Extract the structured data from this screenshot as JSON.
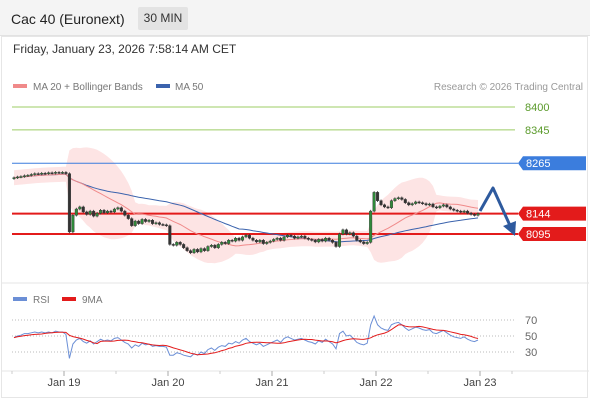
{
  "header": {
    "title": "Cac 40 (Euronext)",
    "timeframe": "30 MIN",
    "datetime": "Friday, January 23, 2026 7:58:14 AM CET"
  },
  "legend": {
    "ma20": "MA 20 + Bollinger Bands",
    "ma50": "MA 50",
    "rsi": "RSI",
    "ma9": "9MA"
  },
  "copyright": "Research © 2026 Trading Central",
  "colors": {
    "ma20": "#f08a8a",
    "ma50": "#3b63ad",
    "bands": "#fde4e4",
    "candle": "#2f8a3a",
    "level_green": "#9ccc65",
    "level_blue": "#3b7ddd",
    "level_red": "#e31b1b",
    "rsi": "#6b8fd6",
    "rsi_ma": "#e31b1b",
    "arrow": "#2e5a9e"
  },
  "chart_data": [
    {
      "type": "candlestick",
      "x_ticks": [
        "Jan 19",
        "Jan 20",
        "Jan 21",
        "Jan 22",
        "Jan 23"
      ],
      "levels": [
        {
          "value": 8400,
          "label": "8400",
          "style": "green-line"
        },
        {
          "value": 8345,
          "label": "8345",
          "style": "green-line"
        },
        {
          "value": 8265,
          "label": "8265",
          "style": "blue-tag"
        },
        {
          "value": 8144,
          "label": "8144",
          "style": "red-tag"
        },
        {
          "value": 8095,
          "label": "8095",
          "style": "red-tag"
        }
      ],
      "close": [
        8230,
        8232,
        8233,
        8235,
        8236,
        8238,
        8240,
        8239,
        8241,
        8240,
        8242,
        8241,
        8243,
        8242,
        8243,
        8240,
        8100,
        8140,
        8155,
        8160,
        8148,
        8142,
        8150,
        8138,
        8145,
        8152,
        8146,
        8150,
        8148,
        8155,
        8158,
        8150,
        8140,
        8132,
        8115,
        8126,
        8120,
        8130,
        8125,
        8128,
        8120,
        8122,
        8118,
        8117,
        8115,
        8070,
        8068,
        8075,
        8070,
        8062,
        8055,
        8050,
        8058,
        8052,
        8060,
        8055,
        8065,
        8068,
        8062,
        8070,
        8075,
        8072,
        8080,
        8078,
        8085,
        8080,
        8088,
        8092,
        8085,
        8080,
        8076,
        8080,
        8072,
        8075,
        8078,
        8082,
        8085,
        8080,
        8088,
        8092,
        8090,
        8085,
        8088,
        8090,
        8085,
        8082,
        8080,
        8076,
        8082,
        8078,
        8085,
        8080,
        8075,
        8065,
        8095,
        8105,
        8095,
        8098,
        8090,
        8080,
        8076,
        8072,
        8075,
        8150,
        8195,
        8175,
        8165,
        8160,
        8158,
        8175,
        8180,
        8182,
        8178,
        8170,
        8165,
        8168,
        8172,
        8170,
        8168,
        8165,
        8167,
        8160,
        8158,
        8162,
        8165,
        8160,
        8155,
        8152,
        8150,
        8148,
        8150,
        8145,
        8142,
        8140,
        8144
      ]
    },
    {
      "type": "line",
      "name": "RSI",
      "y_ticks": [
        70,
        50,
        30
      ],
      "values": [
        48,
        50,
        51,
        53,
        53,
        54,
        55,
        54,
        55,
        54,
        55,
        54,
        56,
        55,
        55,
        52,
        22,
        40,
        45,
        47,
        43,
        41,
        44,
        40,
        43,
        46,
        44,
        45,
        44,
        47,
        48,
        45,
        42,
        40,
        35,
        39,
        37,
        41,
        39,
        40,
        37,
        38,
        37,
        37,
        36,
        26,
        26,
        29,
        28,
        26,
        25,
        24,
        28,
        26,
        30,
        28,
        33,
        35,
        32,
        36,
        38,
        37,
        41,
        40,
        43,
        41,
        45,
        47,
        43,
        41,
        39,
        41,
        37,
        39,
        41,
        43,
        45,
        42,
        47,
        49,
        47,
        45,
        46,
        47,
        45,
        43,
        42,
        40,
        44,
        42,
        46,
        43,
        40,
        34,
        53,
        56,
        50,
        51,
        47,
        42,
        40,
        39,
        41,
        64,
        75,
        64,
        60,
        58,
        57,
        64,
        66,
        67,
        64,
        60,
        57,
        59,
        61,
        60,
        58,
        57,
        58,
        54,
        53,
        55,
        57,
        54,
        51,
        49,
        48,
        47,
        49,
        46,
        44,
        43,
        45
      ]
    }
  ]
}
